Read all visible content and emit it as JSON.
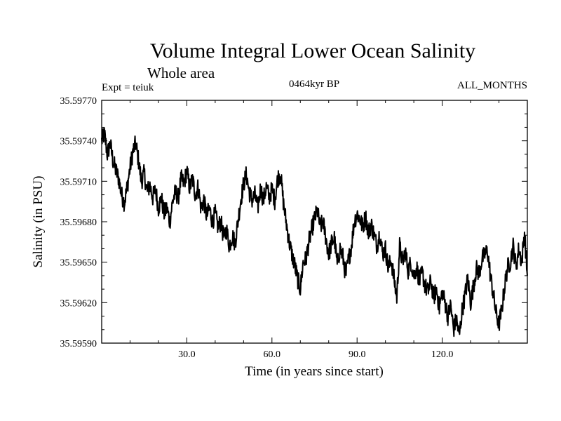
{
  "chart_data": {
    "type": "line",
    "title": "Volume Integral Lower Ocean Salinity",
    "subtitle": "Whole area",
    "experiment": "Expt = teiuk",
    "period": "0464kyr BP",
    "months": "ALL_MONTHS",
    "xlabel": "Time (in years since start)",
    "ylabel": "Salinity (in PSU)",
    "xlim": [
      0,
      150
    ],
    "ylim": [
      35.5959,
      35.5977
    ],
    "x_ticks": [
      "30.0",
      "60.0",
      "90.0",
      "120.0"
    ],
    "y_ticks": [
      "35.59590",
      "35.59620",
      "35.59650",
      "35.59680",
      "35.59710",
      "35.59740",
      "35.59770"
    ],
    "series": [
      {
        "name": "salinity",
        "x": [
          0,
          1,
          2,
          3,
          4,
          5,
          6,
          7,
          8,
          9,
          10,
          11,
          12,
          13,
          14,
          15,
          16,
          17,
          18,
          19,
          20,
          21,
          22,
          23,
          24,
          25,
          26,
          27,
          28,
          29,
          30,
          31,
          32,
          33,
          34,
          35,
          36,
          37,
          38,
          39,
          40,
          41,
          42,
          43,
          44,
          45,
          46,
          47,
          48,
          49,
          50,
          51,
          52,
          53,
          54,
          55,
          56,
          57,
          58,
          59,
          60,
          61,
          62,
          63,
          64,
          65,
          66,
          67,
          68,
          69,
          70,
          71,
          72,
          73,
          74,
          75,
          76,
          77,
          78,
          79,
          80,
          81,
          82,
          83,
          84,
          85,
          86,
          87,
          88,
          89,
          90,
          91,
          92,
          93,
          94,
          95,
          96,
          97,
          98,
          99,
          100,
          101,
          102,
          103,
          104,
          105,
          106,
          107,
          108,
          109,
          110,
          111,
          112,
          113,
          114,
          115,
          116,
          117,
          118,
          119,
          120,
          121,
          122,
          123,
          124,
          125,
          126,
          127,
          128,
          129,
          130,
          131,
          132,
          133,
          134,
          135,
          136,
          137,
          138,
          139,
          140,
          141,
          142,
          143,
          144,
          145,
          146,
          147,
          148,
          149,
          150
        ],
        "values": [
          35.5974,
          35.59745,
          35.5973,
          35.59738,
          35.59725,
          35.59718,
          35.59712,
          35.597,
          35.59694,
          35.59706,
          35.5972,
          35.59732,
          35.59738,
          35.59725,
          35.5971,
          35.59716,
          35.59702,
          35.59707,
          35.59698,
          35.59704,
          35.5969,
          35.59698,
          35.59686,
          35.5969,
          35.5968,
          35.59695,
          35.59702,
          35.59698,
          35.59712,
          35.59708,
          35.59718,
          35.59705,
          35.59712,
          35.597,
          35.59706,
          35.5969,
          35.59696,
          35.59684,
          35.5969,
          35.5968,
          35.59686,
          35.59676,
          35.5968,
          35.59668,
          35.59674,
          35.59662,
          35.5967,
          35.59664,
          35.5968,
          35.59696,
          35.59708,
          35.59715,
          35.59702,
          35.59696,
          35.597,
          35.5969,
          35.59705,
          35.59696,
          35.59706,
          35.59698,
          35.59704,
          35.59696,
          35.59712,
          35.59716,
          35.59695,
          35.5968,
          35.59666,
          35.59656,
          35.59648,
          35.59638,
          35.5963,
          35.5965,
          35.59652,
          35.59665,
          35.59674,
          35.59682,
          35.59688,
          35.59676,
          35.5968,
          35.59668,
          35.59656,
          35.59664,
          35.59668,
          35.59648,
          35.5966,
          35.59654,
          35.5964,
          35.59652,
          35.59662,
          35.5968,
          35.59686,
          35.59682,
          35.59676,
          35.59684,
          35.59672,
          35.59678,
          35.5967,
          35.59662,
          35.59672,
          35.59656,
          35.5966,
          35.59645,
          35.59652,
          35.59638,
          35.59624,
          35.59662,
          35.5965,
          35.59658,
          35.59644,
          35.5965,
          35.5964,
          35.59646,
          35.59636,
          35.59642,
          35.59632,
          35.59628,
          35.59636,
          35.59624,
          35.5963,
          35.59616,
          35.59628,
          35.5962,
          35.5961,
          35.59618,
          35.596,
          35.59608,
          35.59595,
          35.59614,
          35.59625,
          35.59638,
          35.5962,
          35.59632,
          35.59645,
          35.59642,
          35.59652,
          35.59656,
          35.59658,
          35.5964,
          35.59626,
          35.59612,
          35.59604,
          35.59615,
          35.59632,
          35.59646,
          35.5965,
          35.59662,
          35.59646,
          35.5966,
          35.5965,
          35.59672,
          35.5964
        ]
      }
    ]
  }
}
